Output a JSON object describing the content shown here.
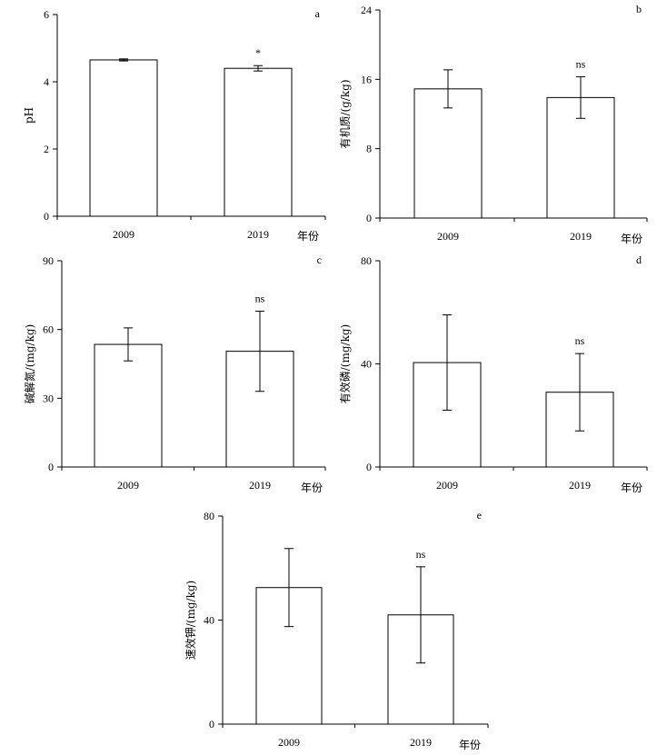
{
  "chart_data": [
    {
      "type": "bar",
      "panel": "a",
      "categories": [
        "2009",
        "2019"
      ],
      "values": [
        4.65,
        4.4
      ],
      "errors": [
        0.03,
        0.08
      ],
      "significance": [
        "",
        "*"
      ],
      "xlabel": "年份",
      "ylabel": "pH",
      "ylim": [
        0,
        6
      ],
      "yticks": [
        0,
        2,
        4,
        6
      ]
    },
    {
      "type": "bar",
      "panel": "b",
      "categories": [
        "2009",
        "2019"
      ],
      "values": [
        14.9,
        13.9
      ],
      "errors": [
        2.2,
        2.4
      ],
      "significance": [
        "",
        "ns"
      ],
      "xlabel": "年份",
      "ylabel": "有机质/(g/kg)",
      "ylim": [
        0,
        24
      ],
      "yticks": [
        0,
        8,
        16,
        24
      ]
    },
    {
      "type": "bar",
      "panel": "c",
      "categories": [
        "2009",
        "2019"
      ],
      "values": [
        53.5,
        50.5
      ],
      "errors": [
        7.2,
        17.5
      ],
      "significance": [
        "",
        "ns"
      ],
      "xlabel": "年份",
      "ylabel": "碱解氮/(mg/kg)",
      "ylim": [
        0,
        90
      ],
      "yticks": [
        0,
        30,
        60,
        90
      ]
    },
    {
      "type": "bar",
      "panel": "d",
      "categories": [
        "2009",
        "2019"
      ],
      "values": [
        40.5,
        29.0
      ],
      "errors": [
        18.5,
        15.0
      ],
      "significance": [
        "",
        "ns"
      ],
      "xlabel": "年份",
      "ylabel": "有效磷/(mg/kg)",
      "ylim": [
        0,
        80
      ],
      "yticks": [
        0,
        40,
        80
      ]
    },
    {
      "type": "bar",
      "panel": "e",
      "categories": [
        "2009",
        "2019"
      ],
      "values": [
        52.5,
        42.0
      ],
      "errors": [
        15.0,
        18.5
      ],
      "significance": [
        "",
        "ns"
      ],
      "xlabel": "年份",
      "ylabel": "速效钾/(mg/kg)",
      "ylim": [
        0,
        80
      ],
      "yticks": [
        0,
        40,
        80
      ]
    }
  ]
}
